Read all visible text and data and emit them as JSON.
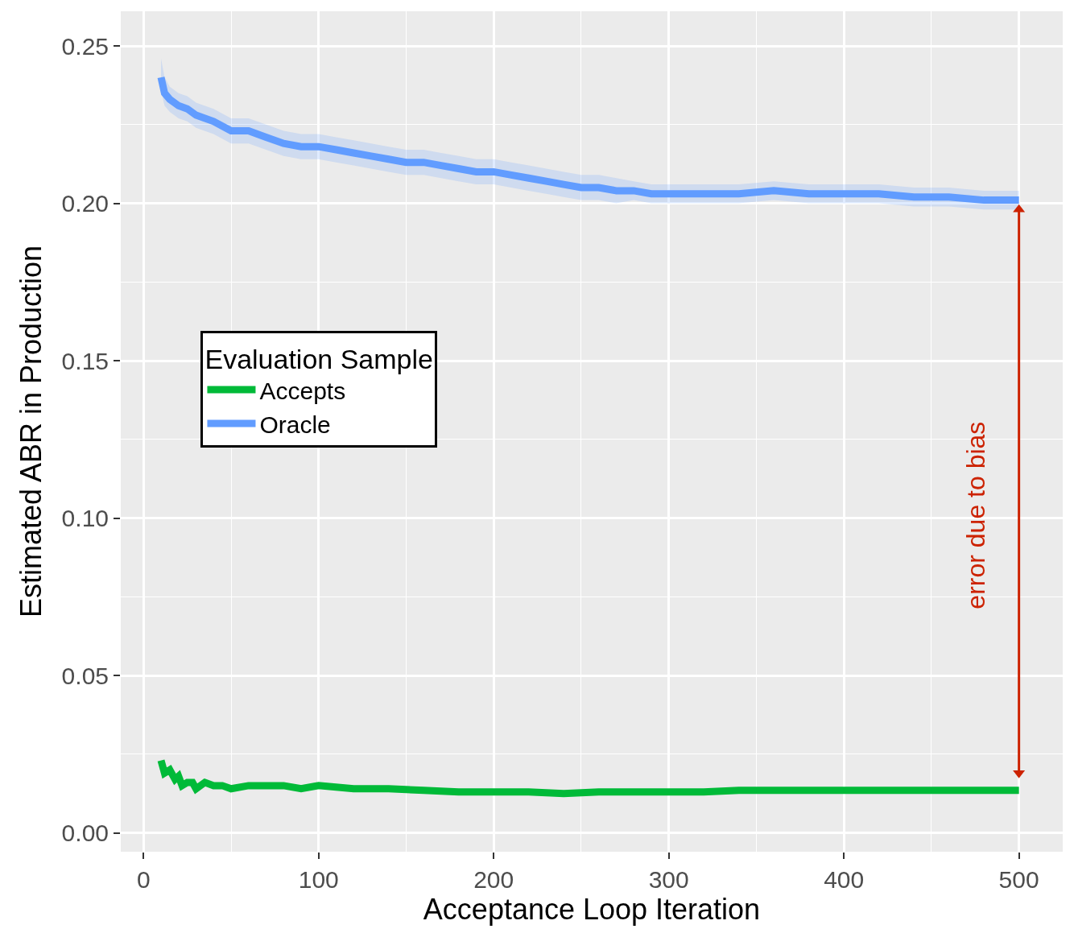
{
  "chart_data": {
    "type": "line",
    "xlabel": "Acceptance Loop Iteration",
    "ylabel": "Estimated ABR in Production",
    "legend_title": "Evaluation Sample",
    "xlim": [
      -13,
      525
    ],
    "ylim": [
      -0.006,
      0.261
    ],
    "xticks": [
      0,
      100,
      200,
      300,
      400,
      500
    ],
    "yticks": [
      {
        "value": 0,
        "label": "0.00"
      },
      {
        "value": 0.05,
        "label": "0.05"
      },
      {
        "value": 0.1,
        "label": "0.10"
      },
      {
        "value": 0.15,
        "label": "0.15"
      },
      {
        "value": 0.2,
        "label": "0.20"
      },
      {
        "value": 0.25,
        "label": "0.25"
      }
    ],
    "grid": true,
    "legend": "left",
    "annotations": [
      "error due to bias"
    ],
    "series": [
      {
        "name": "Accepts",
        "color": "#00ba38",
        "x": [
          10,
          12,
          15,
          18,
          20,
          22,
          25,
          28,
          30,
          35,
          40,
          45,
          50,
          60,
          70,
          80,
          90,
          100,
          120,
          140,
          160,
          180,
          200,
          220,
          240,
          260,
          280,
          300,
          320,
          340,
          360,
          380,
          400,
          420,
          440,
          460,
          480,
          500
        ],
        "values": [
          0.023,
          0.019,
          0.02,
          0.017,
          0.018,
          0.015,
          0.016,
          0.016,
          0.014,
          0.016,
          0.015,
          0.015,
          0.014,
          0.015,
          0.015,
          0.015,
          0.014,
          0.015,
          0.014,
          0.014,
          0.0135,
          0.013,
          0.013,
          0.013,
          0.0125,
          0.013,
          0.013,
          0.013,
          0.013,
          0.0135,
          0.0135,
          0.0135,
          0.0135,
          0.0135,
          0.0135,
          0.0135,
          0.0135,
          0.0135
        ]
      },
      {
        "name": "Oracle",
        "color": "#619cff",
        "x": [
          10,
          12,
          15,
          20,
          25,
          30,
          40,
          50,
          60,
          70,
          80,
          90,
          100,
          110,
          120,
          130,
          140,
          150,
          160,
          170,
          180,
          190,
          200,
          210,
          220,
          230,
          240,
          250,
          260,
          270,
          280,
          290,
          300,
          320,
          340,
          360,
          380,
          400,
          420,
          440,
          460,
          480,
          500
        ],
        "values": [
          0.24,
          0.235,
          0.233,
          0.231,
          0.23,
          0.228,
          0.226,
          0.223,
          0.223,
          0.221,
          0.219,
          0.218,
          0.218,
          0.217,
          0.216,
          0.215,
          0.214,
          0.213,
          0.213,
          0.212,
          0.211,
          0.21,
          0.21,
          0.209,
          0.208,
          0.207,
          0.206,
          0.205,
          0.205,
          0.204,
          0.204,
          0.203,
          0.203,
          0.203,
          0.203,
          0.204,
          0.203,
          0.203,
          0.203,
          0.202,
          0.202,
          0.201,
          0.201
        ],
        "upper": [
          0.246,
          0.24,
          0.237,
          0.235,
          0.234,
          0.232,
          0.23,
          0.227,
          0.227,
          0.225,
          0.223,
          0.222,
          0.222,
          0.221,
          0.22,
          0.219,
          0.218,
          0.217,
          0.217,
          0.216,
          0.215,
          0.214,
          0.214,
          0.213,
          0.212,
          0.211,
          0.21,
          0.209,
          0.209,
          0.208,
          0.207,
          0.206,
          0.206,
          0.206,
          0.206,
          0.207,
          0.206,
          0.206,
          0.206,
          0.205,
          0.205,
          0.204,
          0.204
        ],
        "lower": [
          0.236,
          0.231,
          0.229,
          0.227,
          0.226,
          0.224,
          0.222,
          0.219,
          0.219,
          0.217,
          0.215,
          0.214,
          0.214,
          0.213,
          0.212,
          0.211,
          0.21,
          0.209,
          0.209,
          0.208,
          0.207,
          0.206,
          0.206,
          0.205,
          0.204,
          0.203,
          0.202,
          0.201,
          0.201,
          0.2,
          0.201,
          0.2,
          0.2,
          0.2,
          0.2,
          0.201,
          0.2,
          0.2,
          0.2,
          0.199,
          0.199,
          0.198,
          0.198
        ]
      },
      {
        "type": "line",
        "color": "#cc2200",
        "marker": "triangle",
        "x": [
          500,
          500
        ],
        "values": [
          0.019,
          0.198
        ]
      }
    ]
  }
}
